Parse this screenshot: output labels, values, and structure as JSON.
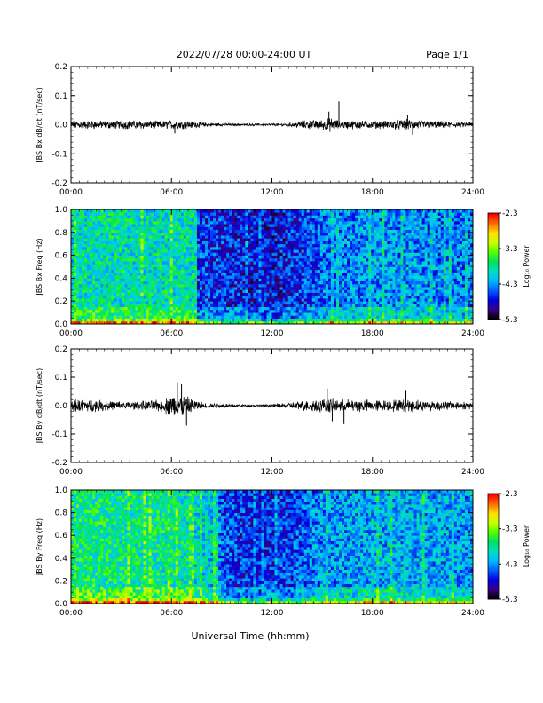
{
  "header": {
    "title": "2022/07/28  00:00-24:00 UT",
    "page": "Page 1/1"
  },
  "footer": {
    "xlabel": "Universal Time (hh:mm)"
  },
  "chart_data": [
    {
      "type": "line",
      "id": "bx-dbdt",
      "ylabel": "JBS Bx dB/dt (nT/sec)",
      "ylim": [
        -0.2,
        0.2
      ],
      "yticks": [
        "0.2",
        "0.1",
        "0.0",
        "-0.1",
        "-0.2"
      ],
      "ytick_values": [
        0.2,
        0.1,
        0.0,
        -0.1,
        -0.2
      ],
      "xlim": [
        0,
        24
      ],
      "xticks": [
        "00:00",
        "06:00",
        "12:00",
        "18:00",
        "24:00"
      ],
      "xtick_values": [
        0,
        6,
        12,
        18,
        24
      ],
      "series": [
        {
          "color": "#000000",
          "envelope_hours": [
            0,
            1,
            2,
            3,
            4,
            5,
            6,
            7,
            8,
            9,
            10,
            11,
            12,
            13,
            14,
            15,
            15.5,
            16,
            17,
            18,
            19,
            20,
            21,
            22,
            23,
            24
          ],
          "amplitude": [
            0.012,
            0.012,
            0.011,
            0.012,
            0.012,
            0.011,
            0.012,
            0.011,
            0.006,
            0.004,
            0.003,
            0.003,
            0.003,
            0.005,
            0.012,
            0.014,
            0.02,
            0.012,
            0.012,
            0.01,
            0.012,
            0.015,
            0.012,
            0.01,
            0.008,
            0.008
          ],
          "spikes": [
            {
              "x": 16.0,
              "y": 0.08
            },
            {
              "x": 15.4,
              "y": 0.045
            },
            {
              "x": 6.2,
              "y": -0.03
            },
            {
              "x": 20.1,
              "y": 0.035
            },
            {
              "x": 20.4,
              "y": -0.035
            }
          ]
        }
      ]
    },
    {
      "type": "heatmap",
      "id": "bx-spectrogram",
      "ylabel": "JBS Bx Freq (Hz)",
      "ylim": [
        0.0,
        1.0
      ],
      "yticks": [
        "1.0",
        "0.8",
        "0.6",
        "0.4",
        "0.2",
        "0.0"
      ],
      "ytick_values": [
        1.0,
        0.8,
        0.6,
        0.4,
        0.2,
        0.0
      ],
      "xlim": [
        0,
        24
      ],
      "xticks": [
        "00:00",
        "06:00",
        "12:00",
        "18:00",
        "24:00"
      ],
      "xtick_values": [
        0,
        6,
        12,
        18,
        24
      ],
      "colorbar": {
        "label": "Log₁₀ Power",
        "range": [
          -5.3,
          -2.3
        ],
        "ticks": [
          "-2.3",
          "-3.3",
          "-4.3",
          "-5.3"
        ],
        "tick_values": [
          -2.3,
          -3.3,
          -4.3,
          -5.3
        ],
        "colors": [
          "#000000",
          "#3a008a",
          "#0000e0",
          "#0060ff",
          "#00b8ff",
          "#00e0c0",
          "#00e060",
          "#50ff00",
          "#c8ff00",
          "#ffe000",
          "#ff7000",
          "#ff0000"
        ]
      },
      "activity_hours": [
        0,
        3,
        6,
        7.5,
        7.6,
        12,
        14,
        15,
        18,
        20,
        24
      ],
      "activity_level": [
        -3.9,
        -3.9,
        -3.9,
        -3.9,
        -4.6,
        -4.8,
        -4.6,
        -4.4,
        -4.3,
        -4.3,
        -4.4
      ]
    },
    {
      "type": "line",
      "id": "by-dbdt",
      "ylabel": "JBS By dB/dt (nT/sec)",
      "ylim": [
        -0.2,
        0.2
      ],
      "yticks": [
        "0.2",
        "0.1",
        "0.0",
        "-0.1",
        "-0.2"
      ],
      "ytick_values": [
        0.2,
        0.1,
        0.0,
        -0.1,
        -0.2
      ],
      "xlim": [
        0,
        24
      ],
      "xticks": [
        "00:00",
        "06:00",
        "12:00",
        "18:00",
        "24:00"
      ],
      "xtick_values": [
        0,
        6,
        12,
        18,
        24
      ],
      "series": [
        {
          "color": "#000000",
          "envelope_hours": [
            0,
            1,
            2,
            3,
            4,
            5,
            5.5,
            6,
            6.5,
            7,
            7.5,
            8,
            9,
            10,
            11,
            12,
            13,
            14,
            15,
            16,
            17,
            18,
            19,
            20,
            21,
            22,
            23,
            24
          ],
          "amplitude": [
            0.018,
            0.017,
            0.015,
            0.012,
            0.012,
            0.015,
            0.02,
            0.03,
            0.035,
            0.025,
            0.015,
            0.008,
            0.006,
            0.004,
            0.003,
            0.004,
            0.008,
            0.015,
            0.02,
            0.02,
            0.018,
            0.016,
            0.016,
            0.018,
            0.016,
            0.014,
            0.012,
            0.01
          ],
          "spikes": [
            {
              "x": 6.35,
              "y": 0.082
            },
            {
              "x": 6.6,
              "y": 0.075
            },
            {
              "x": 6.9,
              "y": -0.07
            },
            {
              "x": 15.3,
              "y": 0.06
            },
            {
              "x": 16.3,
              "y": -0.065
            },
            {
              "x": 15.6,
              "y": -0.055
            },
            {
              "x": 20.0,
              "y": 0.055
            }
          ]
        }
      ]
    },
    {
      "type": "heatmap",
      "id": "by-spectrogram",
      "ylabel": "JBS By Freq (Hz)",
      "ylim": [
        0.0,
        1.0
      ],
      "yticks": [
        "1.0",
        "0.8",
        "0.6",
        "0.4",
        "0.2",
        "0.0"
      ],
      "ytick_values": [
        1.0,
        0.8,
        0.6,
        0.4,
        0.2,
        0.0
      ],
      "xlim": [
        0,
        24
      ],
      "xticks": [
        "00:00",
        "06:00",
        "12:00",
        "18:00",
        "24:00"
      ],
      "xtick_values": [
        0,
        6,
        12,
        18,
        24
      ],
      "colorbar": {
        "label": "Log₁₀ Power",
        "range": [
          -5.3,
          -2.3
        ],
        "ticks": [
          "-2.3",
          "-3.3",
          "-4.3",
          "-5.3"
        ],
        "tick_values": [
          -2.3,
          -3.3,
          -4.3,
          -5.3
        ],
        "colors": [
          "#000000",
          "#3a008a",
          "#0000e0",
          "#0060ff",
          "#00b8ff",
          "#00e0c0",
          "#00e060",
          "#50ff00",
          "#c8ff00",
          "#ffe000",
          "#ff7000",
          "#ff0000"
        ]
      },
      "activity_hours": [
        0,
        3,
        6,
        7.2,
        8.5,
        9,
        11,
        13,
        15,
        18,
        21,
        24
      ],
      "activity_level": [
        -3.7,
        -3.8,
        -3.8,
        -3.9,
        -4.1,
        -4.5,
        -4.7,
        -4.6,
        -4.3,
        -4.2,
        -4.2,
        -4.3
      ]
    }
  ]
}
